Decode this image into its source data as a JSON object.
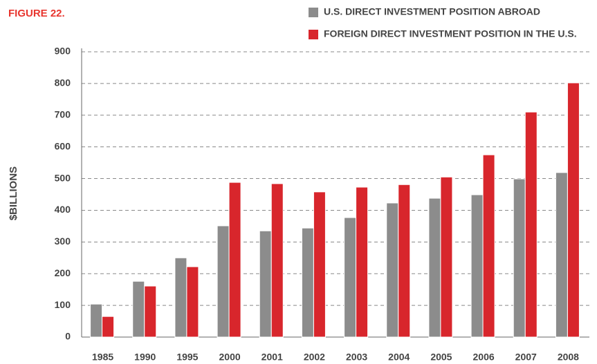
{
  "chart_data": {
    "type": "bar",
    "title": "FIGURE 22.",
    "y_label": "$BILLIONS",
    "categories": [
      "1985",
      "1990",
      "1995",
      "2000",
      "2001",
      "2002",
      "2003",
      "2004",
      "2005",
      "2006",
      "2007",
      "2008"
    ],
    "series": [
      {
        "name": "U.S. DIRECT INVESTMENT POSITION ABROAD",
        "color": "#8c8c8c",
        "values": [
          104,
          176,
          250,
          351,
          335,
          344,
          377,
          423,
          438,
          449,
          499,
          519
        ]
      },
      {
        "name": "FOREIGN DIRECT INVESTMENT POSITION IN THE U.S.",
        "color": "#d8262c",
        "values": [
          65,
          161,
          222,
          488,
          484,
          458,
          473,
          481,
          505,
          575,
          710,
          802
        ]
      }
    ],
    "ylim": [
      0,
      900
    ],
    "yticks": [
      0,
      100,
      200,
      300,
      400,
      500,
      600,
      700,
      800,
      900
    ],
    "grid": true
  }
}
